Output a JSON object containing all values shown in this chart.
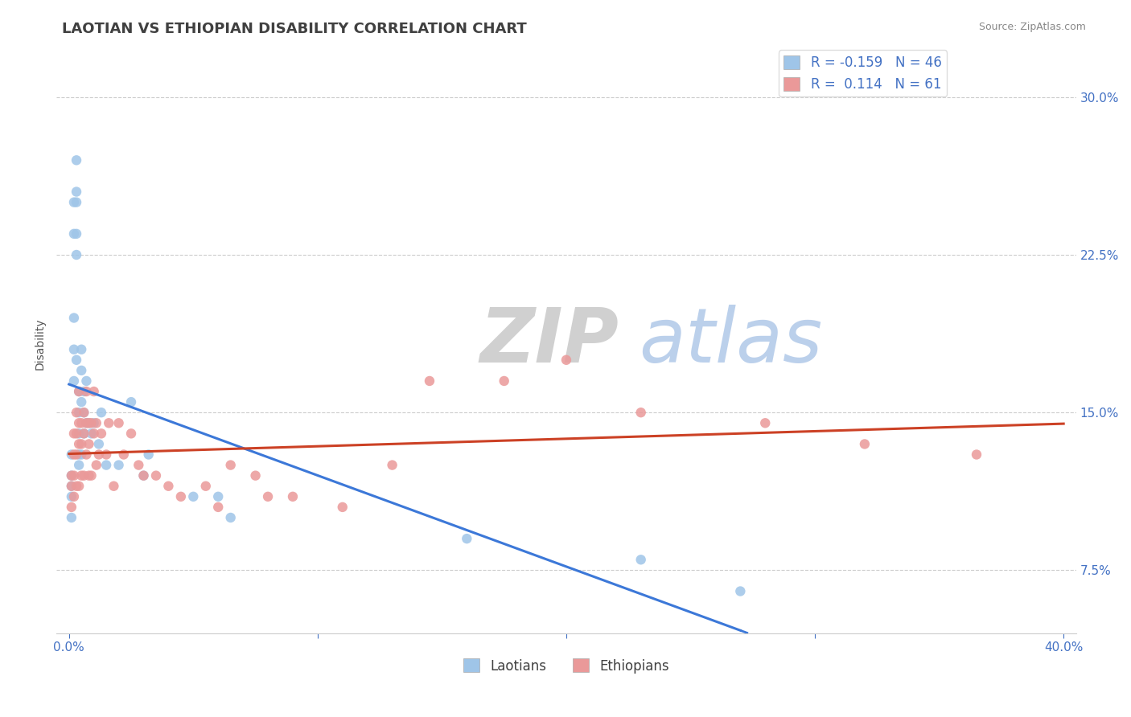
{
  "title": "LAOTIAN VS ETHIOPIAN DISABILITY CORRELATION CHART",
  "source": "Source: ZipAtlas.com",
  "ylabel": "Disability",
  "yticks": [
    0.075,
    0.15,
    0.225,
    0.3
  ],
  "ytick_labels": [
    "7.5%",
    "15.0%",
    "22.5%",
    "30.0%"
  ],
  "xticks": [
    0.0,
    0.1,
    0.2,
    0.3,
    0.4
  ],
  "xtick_labels": [
    "0.0%",
    "",
    "",
    "",
    "40.0%"
  ],
  "xlim": [
    -0.005,
    0.405
  ],
  "ylim": [
    0.045,
    0.32
  ],
  "laotian_color": "#9fc5e8",
  "ethiopian_color": "#ea9999",
  "laotian_line_color": "#3c78d8",
  "ethiopian_line_color": "#cc4125",
  "laotian_R": -0.159,
  "laotian_N": 46,
  "ethiopian_R": 0.114,
  "ethiopian_N": 61,
  "laotian_x": [
    0.001,
    0.001,
    0.001,
    0.001,
    0.001,
    0.002,
    0.002,
    0.002,
    0.002,
    0.002,
    0.003,
    0.003,
    0.003,
    0.003,
    0.003,
    0.003,
    0.004,
    0.004,
    0.004,
    0.004,
    0.004,
    0.005,
    0.005,
    0.005,
    0.005,
    0.006,
    0.006,
    0.006,
    0.007,
    0.007,
    0.008,
    0.009,
    0.01,
    0.012,
    0.013,
    0.015,
    0.02,
    0.025,
    0.03,
    0.032,
    0.05,
    0.06,
    0.065,
    0.16,
    0.23,
    0.27
  ],
  "laotian_y": [
    0.13,
    0.12,
    0.115,
    0.11,
    0.1,
    0.25,
    0.235,
    0.195,
    0.18,
    0.165,
    0.27,
    0.255,
    0.25,
    0.235,
    0.225,
    0.175,
    0.16,
    0.15,
    0.14,
    0.13,
    0.125,
    0.18,
    0.17,
    0.155,
    0.13,
    0.16,
    0.15,
    0.14,
    0.165,
    0.145,
    0.145,
    0.14,
    0.145,
    0.135,
    0.15,
    0.125,
    0.125,
    0.155,
    0.12,
    0.13,
    0.11,
    0.11,
    0.1,
    0.09,
    0.08,
    0.065
  ],
  "ethiopian_x": [
    0.001,
    0.001,
    0.001,
    0.002,
    0.002,
    0.002,
    0.002,
    0.003,
    0.003,
    0.003,
    0.003,
    0.004,
    0.004,
    0.004,
    0.004,
    0.005,
    0.005,
    0.005,
    0.006,
    0.006,
    0.006,
    0.007,
    0.007,
    0.007,
    0.008,
    0.008,
    0.008,
    0.009,
    0.009,
    0.01,
    0.01,
    0.011,
    0.011,
    0.012,
    0.013,
    0.015,
    0.016,
    0.018,
    0.02,
    0.022,
    0.025,
    0.028,
    0.03,
    0.035,
    0.04,
    0.045,
    0.055,
    0.06,
    0.065,
    0.075,
    0.08,
    0.09,
    0.11,
    0.13,
    0.145,
    0.175,
    0.2,
    0.23,
    0.28,
    0.32,
    0.365
  ],
  "ethiopian_y": [
    0.12,
    0.115,
    0.105,
    0.14,
    0.13,
    0.12,
    0.11,
    0.15,
    0.14,
    0.13,
    0.115,
    0.16,
    0.145,
    0.135,
    0.115,
    0.145,
    0.135,
    0.12,
    0.15,
    0.14,
    0.12,
    0.16,
    0.145,
    0.13,
    0.145,
    0.135,
    0.12,
    0.145,
    0.12,
    0.16,
    0.14,
    0.145,
    0.125,
    0.13,
    0.14,
    0.13,
    0.145,
    0.115,
    0.145,
    0.13,
    0.14,
    0.125,
    0.12,
    0.12,
    0.115,
    0.11,
    0.115,
    0.105,
    0.125,
    0.12,
    0.11,
    0.11,
    0.105,
    0.125,
    0.165,
    0.165,
    0.175,
    0.15,
    0.145,
    0.135,
    0.13
  ],
  "background_color": "#ffffff",
  "grid_color": "#cccccc",
  "watermark_zip_color": "#c8c8c8",
  "watermark_atlas_color": "#b0c8e8",
  "title_fontsize": 13,
  "axis_label_fontsize": 10,
  "tick_fontsize": 11,
  "legend_fontsize": 12
}
